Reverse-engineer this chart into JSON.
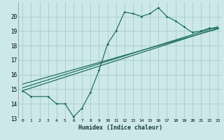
{
  "xlabel": "Humidex (Indice chaleur)",
  "bg_color": "#cce8e8",
  "grid_color": "#aacccc",
  "line_color": "#1a6b5a",
  "xlim": [
    -0.5,
    23.5
  ],
  "ylim": [
    13,
    21
  ],
  "yticks": [
    13,
    14,
    15,
    16,
    17,
    18,
    19,
    20
  ],
  "xticks": [
    0,
    1,
    2,
    3,
    4,
    5,
    6,
    7,
    8,
    9,
    10,
    11,
    12,
    13,
    14,
    15,
    16,
    17,
    18,
    19,
    20,
    21,
    22,
    23
  ],
  "series1_x": [
    0,
    1,
    3,
    4,
    5,
    6,
    7,
    8,
    9,
    10,
    11,
    12,
    13,
    14,
    15,
    16,
    17,
    18,
    19,
    20,
    21,
    22,
    23
  ],
  "series1_y": [
    14.9,
    14.5,
    14.5,
    14.0,
    14.0,
    13.1,
    13.7,
    14.8,
    16.3,
    18.1,
    19.0,
    20.3,
    20.2,
    20.0,
    20.2,
    20.6,
    20.0,
    19.7,
    19.3,
    18.9,
    19.0,
    19.2,
    19.2
  ],
  "series2_x": [
    0,
    23
  ],
  "series2_y": [
    14.9,
    19.2
  ],
  "series3_x": [
    0,
    23
  ],
  "series3_y": [
    15.1,
    19.3
  ],
  "series4_x": [
    0,
    23
  ],
  "series4_y": [
    15.35,
    19.15
  ]
}
